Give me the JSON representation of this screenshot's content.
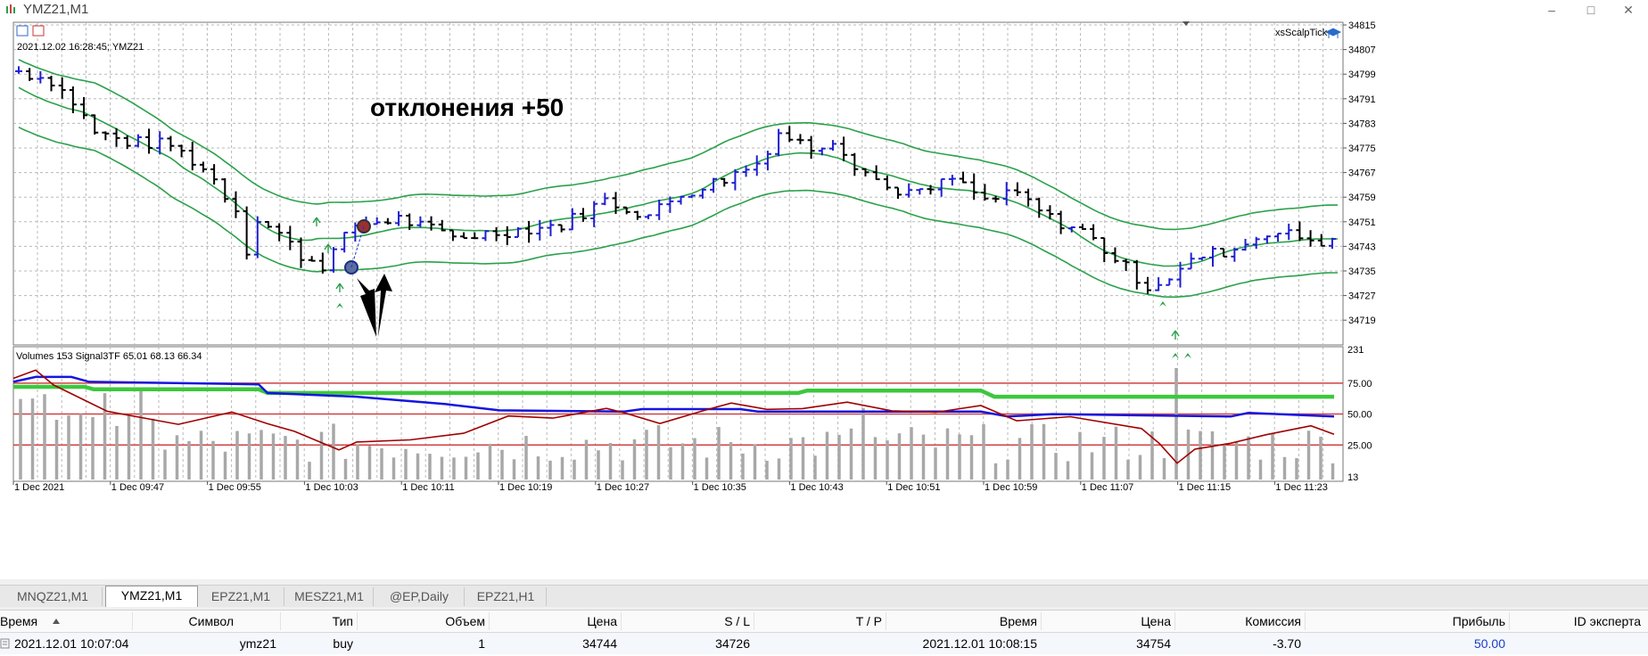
{
  "window": {
    "title": "YMZ21,M1",
    "controls": [
      "–",
      "□",
      "✕"
    ]
  },
  "chart": {
    "info": "2021.12.02 16:28:45; YMZ21",
    "expert": "xsScalpTick",
    "annotation": "отклонения +50",
    "price_levels": [
      "34815",
      "34807",
      "34799",
      "34791",
      "34783",
      "34775",
      "34767",
      "34759",
      "34751",
      "34743",
      "34735",
      "34727",
      "34719"
    ],
    "time_labels": [
      "1 Dec 2021",
      "1 Dec 09:47",
      "1 Dec 09:55",
      "1 Dec 10:03",
      "1 Dec 10:11",
      "1 Dec 10:19",
      "1 Dec 10:27",
      "1 Dec 10:35",
      "1 Dec 10:43",
      "1 Dec 10:51",
      "1 Dec 10:59",
      "1 Dec 11:07",
      "1 Dec 11:15",
      "1 Dec 11:23"
    ],
    "indicator_label": "Volumes 153 Signal3TF 65.01 68.13 66.34",
    "indicator_levels": [
      "231",
      "75.00",
      "50.00",
      "25.00",
      "13"
    ],
    "colors": {
      "bull": "#1f1fd0",
      "bear": "#000000",
      "band": "#2aa14a",
      "grid": "#b8b8b8",
      "blue_line": "#1515e0",
      "green_line": "#3cc83c",
      "red_line": "#a00000",
      "level_line": "#d04040",
      "volume": "#a8a8a8",
      "arrow": "#2aa14a"
    }
  },
  "tabs": [
    {
      "label": "MNQZ21,M1",
      "active": false
    },
    {
      "label": "YMZ21,M1",
      "active": true
    },
    {
      "label": "EPZ21,M1",
      "active": false
    },
    {
      "label": "MESZ21,M1",
      "active": false
    },
    {
      "label": "@EP,Daily",
      "active": false
    },
    {
      "label": "EPZ21,H1",
      "active": false
    }
  ],
  "trades": {
    "headers": {
      "time": "Время",
      "symbol": "Символ",
      "type": "Тип",
      "volume": "Объем",
      "price": "Цена",
      "sl": "S / L",
      "tp": "T / P",
      "close_time": "Время",
      "close_price": "Цена",
      "commission": "Комиссия",
      "profit": "Прибыль",
      "expert_id": "ID эксперта"
    },
    "rows": [
      {
        "time": "2021.12.01 10:07:04",
        "symbol": "ymz21",
        "type": "buy",
        "volume": "1",
        "price": "34744",
        "sl": "34726",
        "tp": "",
        "close_time": "2021.12.01 10:08:15",
        "close_price": "34754",
        "commission": "-3.70",
        "profit": "50.00",
        "expert_id": ""
      }
    ]
  }
}
